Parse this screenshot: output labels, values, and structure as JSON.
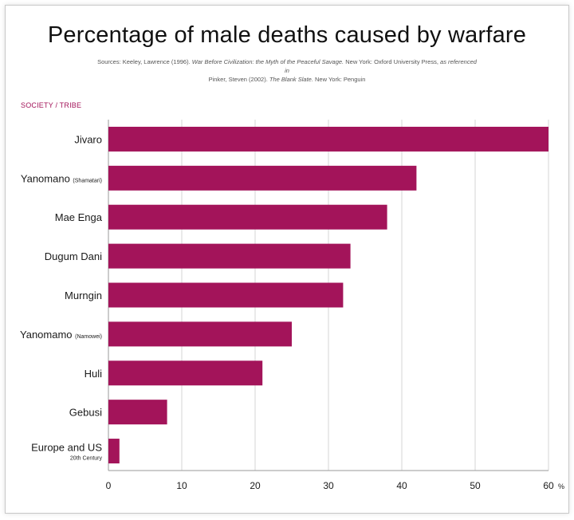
{
  "title": "Percentage of male deaths caused by warfare",
  "source": {
    "prefix": "Sources: Keeley, Lawrence (1996).",
    "book1": "War Before Civilization: the Myth of the Peaceful Savage.",
    "mid1": "New York: Oxford University Press,",
    "ref": "as referenced in",
    "line2a": "Pinker, Steven (2002).",
    "book2": "The Blank Slate.",
    "line2b": "New York: Penguin"
  },
  "category_axis_title": "SOCIETY / TRIBE",
  "chart_data": {
    "type": "bar",
    "orientation": "horizontal",
    "title": "Percentage of male deaths caused by warfare",
    "ylabel": "SOCIETY / TRIBE",
    "xlabel": "",
    "unit": "%",
    "xlim": [
      0,
      60
    ],
    "xticks": [
      0,
      10,
      20,
      30,
      40,
      50,
      60
    ],
    "grid": true,
    "color": "#a3145a",
    "categories": [
      {
        "label": "Jivaro",
        "sub": "",
        "value": 60
      },
      {
        "label": "Yanomano",
        "sub": "(Shamatari)",
        "value": 42
      },
      {
        "label": "Mae Enga",
        "sub": "",
        "value": 38
      },
      {
        "label": "Dugum Dani",
        "sub": "",
        "value": 33
      },
      {
        "label": "Murngin",
        "sub": "",
        "value": 32
      },
      {
        "label": "Yanomamo",
        "sub": "(Namowei)",
        "value": 25
      },
      {
        "label": "Huli",
        "sub": "",
        "value": 21
      },
      {
        "label": "Gebusi",
        "sub": "",
        "value": 8
      },
      {
        "label": "Europe and US",
        "sub": "20th Century",
        "value": 1.5
      }
    ]
  }
}
